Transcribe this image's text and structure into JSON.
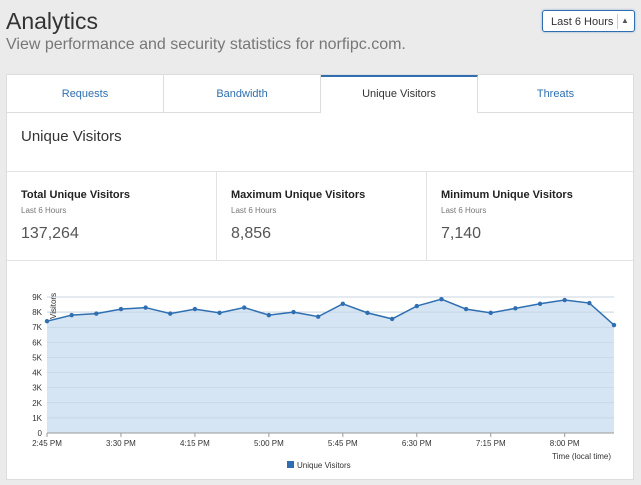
{
  "header": {
    "title": "Analytics",
    "subtitle": "View performance and security statistics for norfipc.com.",
    "range_select": {
      "value": "Last 6 Hours"
    }
  },
  "tabs": [
    {
      "label": "Requests",
      "active": false
    },
    {
      "label": "Bandwidth",
      "active": false
    },
    {
      "label": "Unique Visitors",
      "active": true
    },
    {
      "label": "Threats",
      "active": false
    }
  ],
  "section": {
    "title": "Unique Visitors"
  },
  "stats": [
    {
      "name": "Total Unique Visitors",
      "period": "Last 6 Hours",
      "value": "137,264"
    },
    {
      "name": "Maximum Unique Visitors",
      "period": "Last 6 Hours",
      "value": "8,856"
    },
    {
      "name": "Minimum Unique Visitors",
      "period": "Last 6 Hours",
      "value": "7,140"
    }
  ],
  "colors": {
    "accent": "#2f6fb1",
    "area_fill": "#d6e5f3",
    "line": "#2f6fb1"
  },
  "chart_data": {
    "type": "area",
    "ylabel": "Visitors",
    "xlabel": "Time (local time)",
    "ylim": [
      0,
      9000
    ],
    "yticks": [
      "0",
      "1K",
      "2K",
      "3K",
      "4K",
      "5K",
      "6K",
      "7K",
      "8K",
      "9K"
    ],
    "xticks": [
      "2:45 PM",
      "3:30 PM",
      "4:15 PM",
      "5:00 PM",
      "5:45 PM",
      "6:30 PM",
      "7:15 PM",
      "8:00 PM"
    ],
    "grid": true,
    "legend": "bottom-center",
    "series": [
      {
        "name": "Unique Visitors",
        "values": [
          7400,
          7800,
          7900,
          8200,
          8300,
          7900,
          8200,
          7950,
          8300,
          7800,
          8000,
          7700,
          8550,
          7950,
          7550,
          8400,
          8856,
          8200,
          7950,
          8250,
          8550,
          8800,
          8600,
          7140
        ]
      }
    ]
  }
}
